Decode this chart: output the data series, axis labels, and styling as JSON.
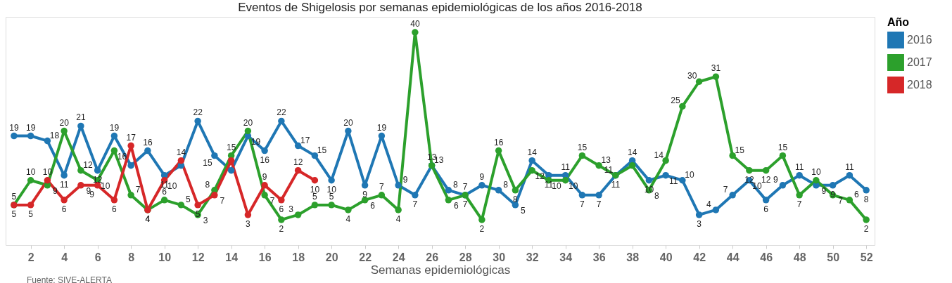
{
  "chart_data": {
    "type": "line",
    "title": "Eventos de Shigelosis por semanas epidemiológicas de los años 2016-2018",
    "xlabel": "Semanas epidemiológicas",
    "legend_title": "Año",
    "annotations": [
      "Fuente: SIVE-ALERTA"
    ],
    "x": [
      1,
      2,
      3,
      4,
      5,
      6,
      7,
      8,
      9,
      10,
      11,
      12,
      13,
      14,
      15,
      16,
      17,
      18,
      19,
      20,
      21,
      22,
      23,
      24,
      25,
      26,
      27,
      28,
      29,
      30,
      31,
      32,
      33,
      34,
      35,
      36,
      37,
      38,
      39,
      40,
      41,
      42,
      43,
      44,
      45,
      46,
      47,
      48,
      49,
      50,
      51,
      52
    ],
    "xlim": [
      0.5,
      52.5
    ],
    "xticks": [
      2,
      4,
      6,
      8,
      10,
      12,
      14,
      16,
      18,
      20,
      22,
      24,
      26,
      28,
      30,
      32,
      34,
      36,
      38,
      40,
      42,
      44,
      46,
      48,
      50,
      52
    ],
    "series": [
      {
        "name": "2016",
        "color": "#1f77b4",
        "values": [
          19,
          19,
          18,
          11,
          21,
          12,
          19,
          13,
          16,
          11,
          13,
          22,
          15,
          12,
          19,
          16,
          22,
          17,
          15,
          10,
          20,
          9,
          19,
          9,
          7,
          13,
          8,
          7,
          9,
          8,
          5,
          14,
          11,
          11,
          7,
          7,
          11,
          14,
          10,
          11,
          10,
          3,
          4,
          7,
          10,
          6,
          9,
          11,
          9,
          9,
          11,
          8
        ],
        "value_labels": [
          "19",
          "19",
          "18",
          "11",
          "21",
          "12",
          "19",
          null,
          "16",
          "11",
          null,
          "22",
          "15",
          null,
          "19",
          "16",
          "22",
          "17",
          "15",
          "10",
          "20",
          "9",
          "19",
          "9",
          "7",
          "13",
          "8",
          "7",
          "9",
          "8",
          "5",
          "14",
          "11",
          "11",
          "7",
          "7",
          "11",
          "14",
          "10",
          "11",
          "10",
          "3",
          "4",
          "7",
          "10",
          "6",
          "9",
          "11",
          "9",
          "9",
          "11",
          "8"
        ]
      },
      {
        "name": "2017",
        "color": "#2ca02c",
        "values": [
          5,
          10,
          9,
          20,
          12,
          10,
          16,
          7,
          4,
          6,
          5,
          3,
          8,
          15,
          20,
          7,
          2,
          3,
          5,
          5,
          4,
          6,
          7,
          4,
          40,
          13,
          6,
          7,
          2,
          16,
          8,
          12,
          10,
          10,
          15,
          13,
          11,
          13,
          8,
          14,
          25,
          30,
          31,
          15,
          12,
          12,
          15,
          7,
          10,
          7,
          6,
          2
        ],
        "value_labels": [
          "5",
          "10",
          "9",
          "20",
          "12",
          "10",
          "16",
          "7",
          "4",
          "6",
          "5",
          "3",
          "8",
          "15",
          "20",
          "7",
          "2",
          "3",
          "5",
          "5",
          "4",
          "6",
          "7",
          "4",
          "40",
          "13",
          "6",
          "7",
          "2",
          "16",
          "8",
          "12",
          "10",
          "10",
          "15",
          "13",
          "11",
          null,
          "8",
          "14",
          "25",
          "30",
          "31",
          "15",
          "12",
          "12",
          "15",
          "7",
          "10",
          "7",
          "6",
          "2"
        ]
      },
      {
        "name": "2018",
        "color": "#d62728",
        "values": [
          5,
          5,
          10,
          6,
          9,
          9,
          6,
          17,
          4,
          10,
          14,
          5,
          7,
          14,
          3,
          9,
          6,
          12,
          10,
          null,
          null,
          null,
          null,
          null,
          null,
          null,
          null,
          null,
          null,
          null,
          null,
          null,
          null,
          null,
          null,
          null,
          null,
          null,
          null,
          null,
          null,
          null,
          null,
          null,
          null,
          null,
          null,
          null,
          null,
          null,
          null,
          null
        ],
        "value_labels": [
          "5",
          "5",
          "10",
          "6",
          "9",
          "9",
          "6",
          "17",
          "4",
          "10",
          "14",
          "5",
          "7",
          null,
          "3",
          "9",
          "6",
          "12",
          "10",
          null,
          null,
          null,
          null,
          null,
          null,
          null,
          null,
          null,
          null,
          null,
          null,
          null,
          null,
          null,
          null,
          null,
          null,
          null,
          null,
          null,
          null,
          null,
          null,
          null,
          null,
          null,
          null,
          null,
          null,
          null,
          null,
          null
        ]
      }
    ],
    "grid": false,
    "legend": "top right",
    "marker": "circle",
    "line_style": "solid"
  }
}
